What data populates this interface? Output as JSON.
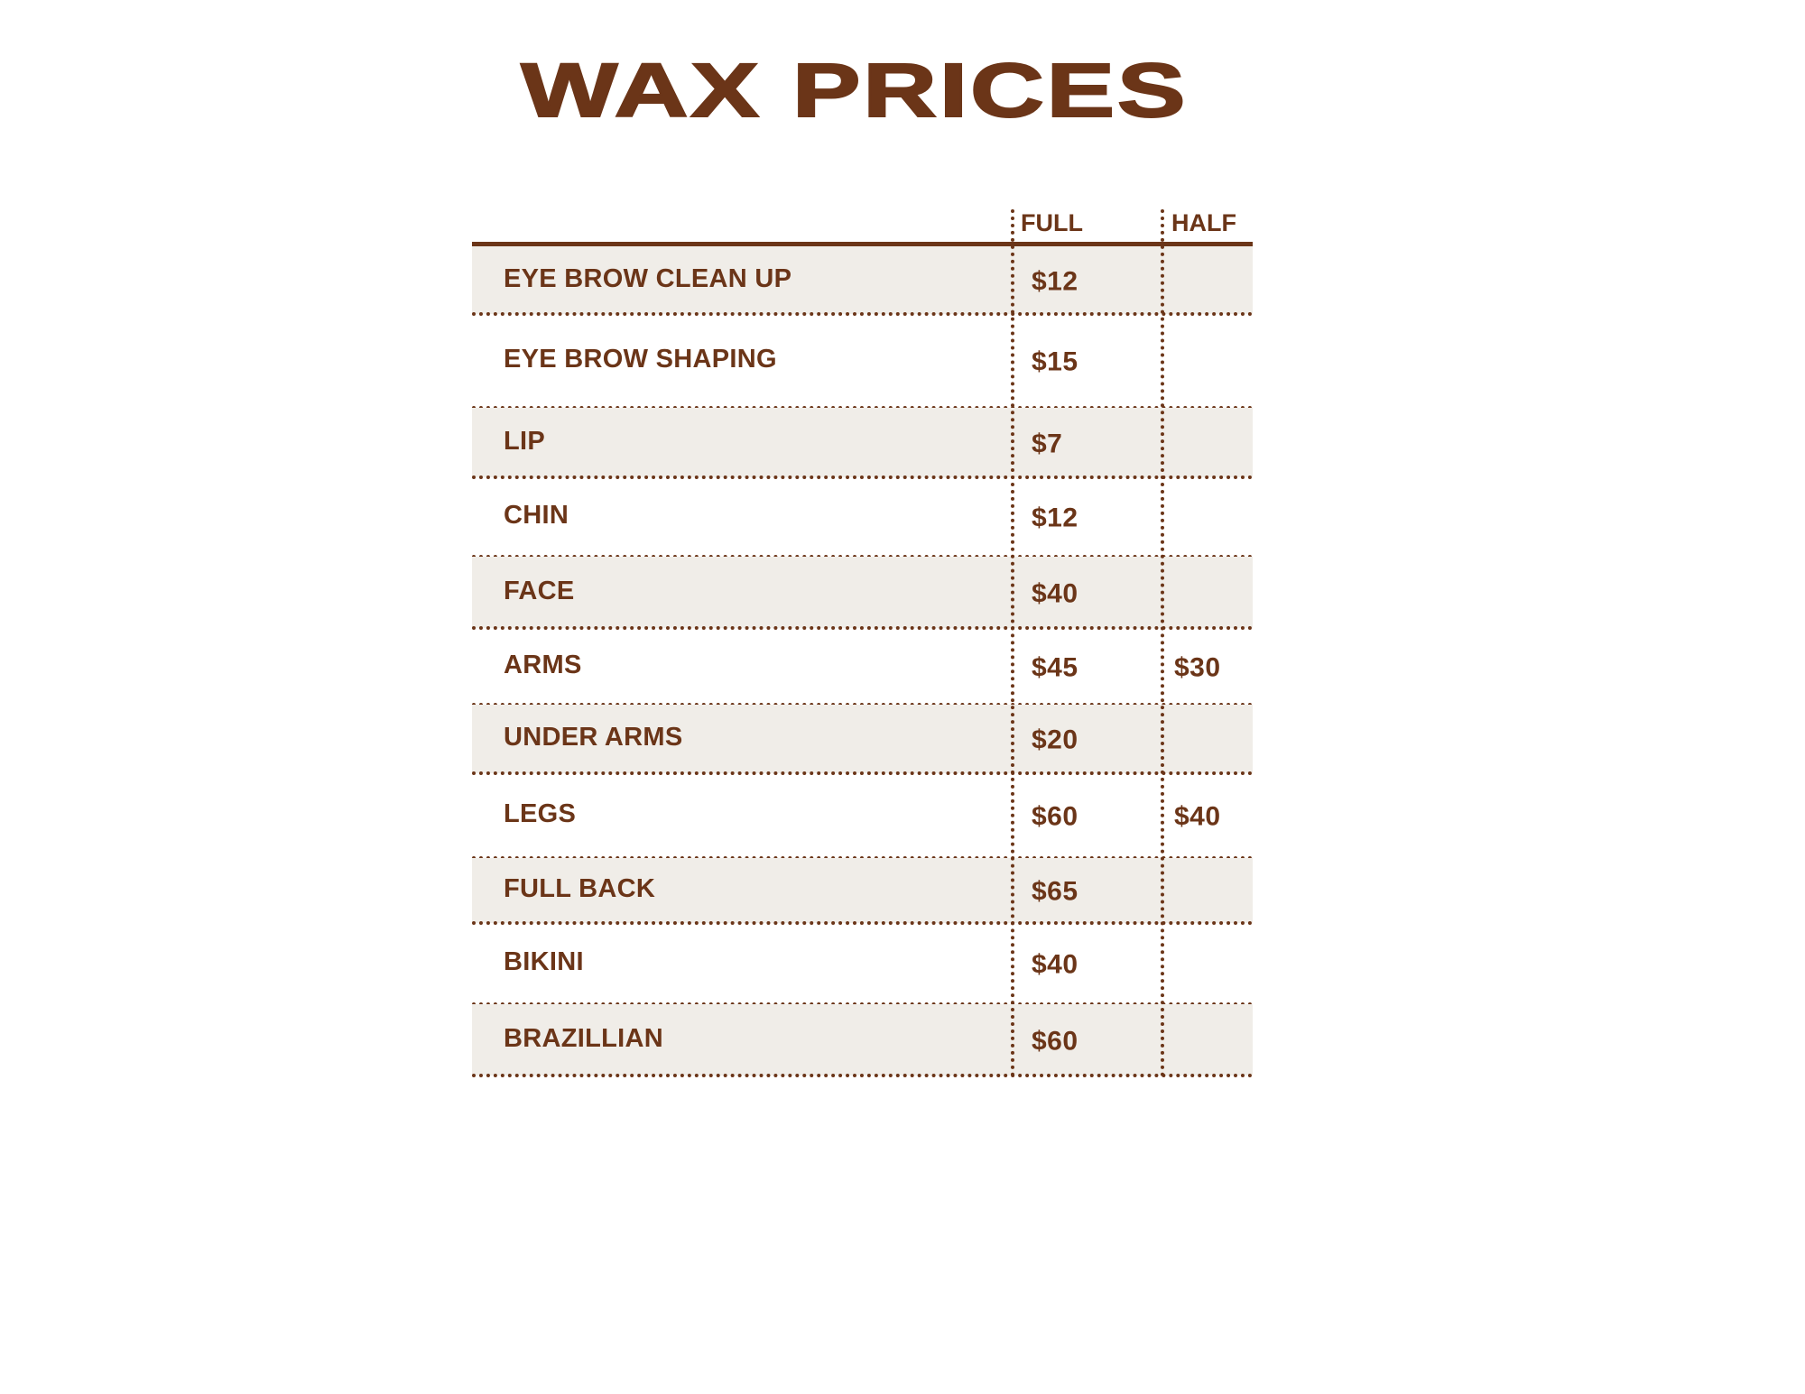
{
  "title": "WAX PRICES",
  "colors": {
    "text": "#6b3518",
    "row_shade": "#f0ede8"
  },
  "columns": {
    "full": "FULL",
    "half": "HALF"
  },
  "rows": [
    {
      "service": "EYE BROW CLEAN UP",
      "full": "$12",
      "half": ""
    },
    {
      "service": "EYE BROW SHAPING",
      "full": "$15",
      "half": ""
    },
    {
      "service": "LIP",
      "full": "$7",
      "half": ""
    },
    {
      "service": "CHIN",
      "full": "$12",
      "half": ""
    },
    {
      "service": "FACE",
      "full": "$40",
      "half": ""
    },
    {
      "service": "ARMS",
      "full": "$45",
      "half": "$30"
    },
    {
      "service": "UNDER ARMS",
      "full": "$20",
      "half": ""
    },
    {
      "service": "LEGS",
      "full": "$60",
      "half": "$40"
    },
    {
      "service": "FULL BACK",
      "full": "$65",
      "half": ""
    },
    {
      "service": "BIKINI",
      "full": "$40",
      "half": ""
    },
    {
      "service": "BRAZILLIAN",
      "full": "$60",
      "half": ""
    }
  ]
}
